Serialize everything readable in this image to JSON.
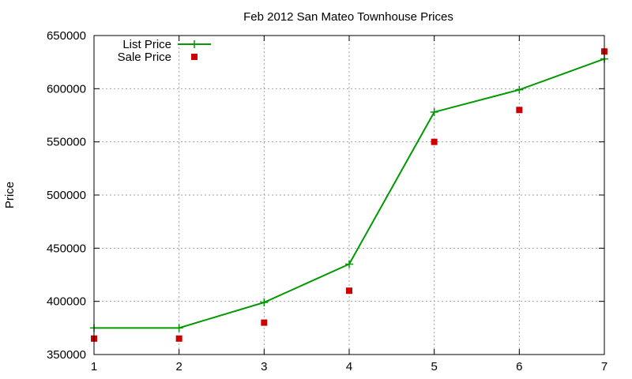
{
  "chart_data": {
    "type": "line",
    "title": "Feb 2012 San Mateo Townhouse Prices",
    "xlabel": "",
    "ylabel": "Price",
    "xlim": [
      1,
      7
    ],
    "ylim": [
      350000,
      650000
    ],
    "x_ticks": [
      1,
      2,
      3,
      4,
      5,
      6,
      7
    ],
    "y_ticks": [
      350000,
      400000,
      450000,
      500000,
      550000,
      600000,
      650000
    ],
    "grid": true,
    "legend_position": "top-left",
    "x": [
      1,
      2,
      3,
      4,
      5,
      6,
      7
    ],
    "series": [
      {
        "name": "List Price",
        "style": "linespoints",
        "marker": "plus",
        "color": "#009900",
        "values": [
          375000,
          375000,
          399000,
          435000,
          578000,
          599000,
          628000
        ]
      },
      {
        "name": "Sale Price",
        "style": "points",
        "marker": "square",
        "color": "#cc0000",
        "values": [
          365000,
          365000,
          380000,
          410000,
          550000,
          580000,
          635000
        ]
      }
    ]
  }
}
